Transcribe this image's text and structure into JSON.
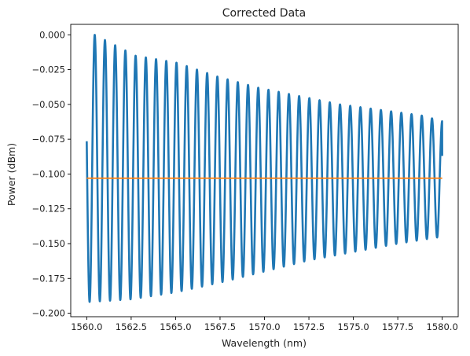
{
  "chart_data": {
    "type": "line",
    "title": "Corrected Data",
    "xlabel": "Wavelength (nm)",
    "ylabel": "Power (dBm)",
    "xlim": [
      1559.1,
      1580.9
    ],
    "ylim": [
      -0.2025,
      0.0075
    ],
    "x_ticks": [
      1560.0,
      1562.5,
      1565.0,
      1567.5,
      1570.0,
      1572.5,
      1575.0,
      1577.5,
      1580.0
    ],
    "x_tick_labels": [
      "1560.0",
      "1562.5",
      "1565.0",
      "1567.5",
      "1570.0",
      "1572.5",
      "1575.0",
      "1577.5",
      "1580.0"
    ],
    "y_ticks": [
      0.0,
      -0.025,
      -0.05,
      -0.075,
      -0.1,
      -0.125,
      -0.15,
      -0.175,
      -0.2
    ],
    "y_tick_labels": [
      "0.000",
      "−0.025",
      "−0.050",
      "−0.075",
      "−0.100",
      "−0.125",
      "−0.150",
      "−0.175",
      "−0.200"
    ],
    "grid": false,
    "legend": "none",
    "series": [
      {
        "color": "#1f77b4",
        "kind": "fringe-envelope",
        "x": [
          1560.0,
          1580.0
        ],
        "fringe_period_nm": 0.575,
        "first_max_x": 1560.45,
        "max_envelope": {
          "x": [
            1560.45,
            1562.75,
            1565.05,
            1567.35,
            1569.65,
            1571.95,
            1574.25,
            1576.55,
            1578.85,
            1580.0
          ],
          "y": [
            0.0,
            -0.015,
            -0.02,
            -0.03,
            -0.038,
            -0.044,
            -0.05,
            -0.054,
            -0.058,
            -0.062
          ]
        },
        "min_envelope": {
          "x": [
            1560.0,
            1562.5,
            1565.0,
            1567.5,
            1570.0,
            1572.5,
            1575.0,
            1577.5,
            1580.0
          ],
          "y": [
            -0.192,
            -0.19,
            -0.185,
            -0.178,
            -0.17,
            -0.162,
            -0.156,
            -0.15,
            -0.145
          ]
        },
        "end_value": -0.087
      },
      {
        "color": "#ff7f0e",
        "kind": "constant",
        "x": [
          1560.0,
          1580.0
        ],
        "y": [
          -0.103,
          -0.103
        ]
      }
    ]
  }
}
